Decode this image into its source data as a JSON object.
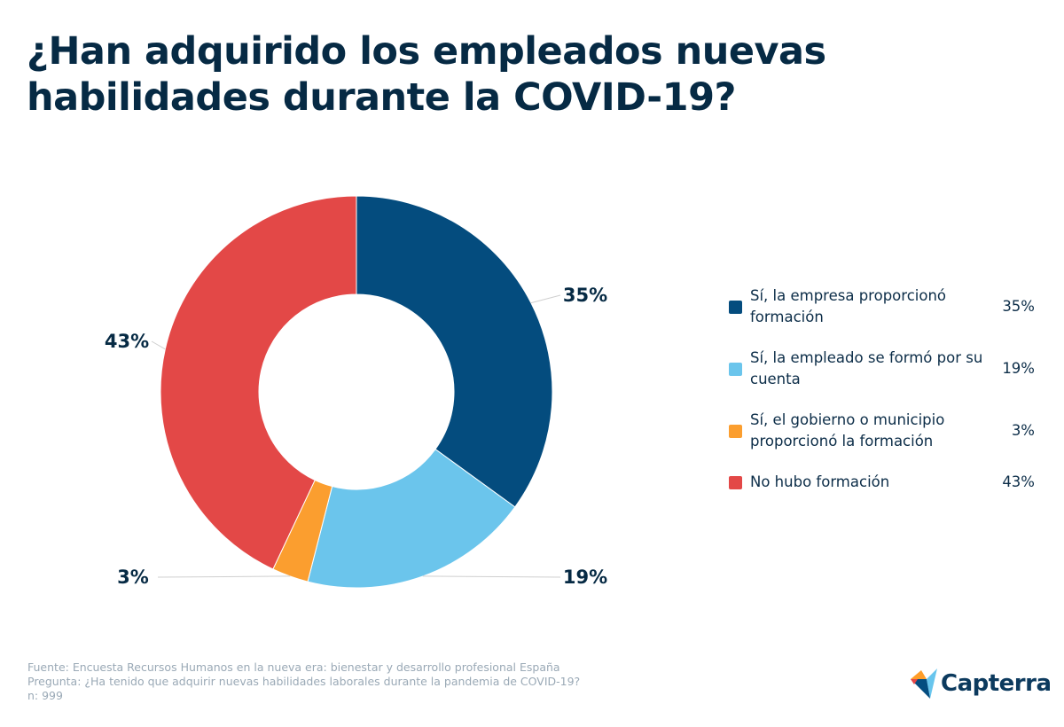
{
  "title": "¿Han adquirido los empleados nuevas habilidades durante la COVID-19?",
  "chart_data": {
    "type": "pie",
    "donut": true,
    "categories": [
      "Sí, la empresa proporcionó formación",
      "Sí, la empleado se formó por su cuenta",
      "Sí, el gobierno o municipio proporcionó la formación",
      "No hubo formación"
    ],
    "values": [
      35,
      19,
      3,
      43
    ],
    "labels": [
      "35%",
      "19%",
      "3%",
      "43%"
    ],
    "colors": [
      "#044c7e",
      "#6bc5ec",
      "#fb9e2f",
      "#e34847"
    ],
    "legend_position": "right"
  },
  "footer": {
    "source": "Fuente: Encuesta Recursos Humanos en la nueva era: bienestar y desarrollo profesional España",
    "question": "Pregunta: ¿Ha tenido que adquirir nuevas habilidades laborales durante la pandemia de COVID-19?",
    "n": "n: 999"
  },
  "logo": {
    "text": "Capterra"
  }
}
